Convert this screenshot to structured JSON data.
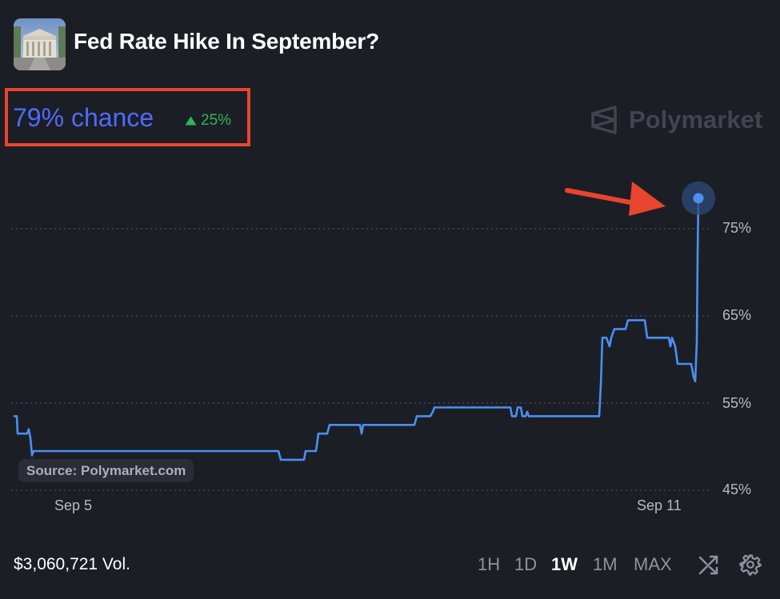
{
  "market": {
    "title": "Fed Rate Hike In September?",
    "icon": "federal-reserve-building-image"
  },
  "headline": {
    "chance": "79% chance",
    "change": "25%",
    "change_direction": "up",
    "chance_color": "#4f6bff",
    "change_color": "#2fb55a"
  },
  "annotations": {
    "highlight_box_color": "#e8452e",
    "arrow_color": "#e8452e"
  },
  "brand": {
    "name": "Polymarket",
    "icon": "polymarket-logo-icon"
  },
  "source": "Source: Polymarket.com",
  "chart_data": {
    "type": "line",
    "line_color": "#4a90f0",
    "ylim": [
      42,
      81
    ],
    "yticks": [
      45,
      55,
      65,
      75
    ],
    "ytick_labels": [
      "45%",
      "55%",
      "65%",
      "75%"
    ],
    "xtick_labels": [
      "Sep 5",
      "Sep 11"
    ],
    "grid": "horizontal-dotted",
    "x_start": 0,
    "x_end": 855,
    "xtick_positions": [
      68,
      795
    ],
    "series": [
      {
        "points": [
          [
            0,
            53.5
          ],
          [
            3,
            53.5
          ],
          [
            4,
            51.5
          ],
          [
            16,
            51.5
          ],
          [
            18,
            52
          ],
          [
            20,
            51
          ],
          [
            22,
            49
          ],
          [
            24,
            49.5
          ],
          [
            330,
            49.5
          ],
          [
            333,
            48.5
          ],
          [
            362,
            48.5
          ],
          [
            364,
            49.5
          ],
          [
            377,
            49.5
          ],
          [
            380,
            51.5
          ],
          [
            391,
            51.5
          ],
          [
            394,
            52.5
          ],
          [
            432,
            52.5
          ],
          [
            434,
            51.5
          ],
          [
            436,
            52.5
          ],
          [
            500,
            52.5
          ],
          [
            503,
            53.5
          ],
          [
            520,
            53.5
          ],
          [
            523,
            54
          ],
          [
            525,
            54.5
          ],
          [
            620,
            54.5
          ],
          [
            622,
            53.5
          ],
          [
            627,
            53.5
          ],
          [
            629,
            54.5
          ],
          [
            633,
            54.5
          ],
          [
            635,
            53.5
          ],
          [
            639,
            53.5
          ],
          [
            641,
            54
          ],
          [
            643,
            53.5
          ],
          [
            731,
            53.5
          ],
          [
            733,
            57
          ],
          [
            735,
            62.5
          ],
          [
            740,
            62.5
          ],
          [
            744,
            61.5
          ],
          [
            746,
            62.5
          ],
          [
            750,
            63.5
          ],
          [
            764,
            63.5
          ],
          [
            767,
            64.5
          ],
          [
            788,
            64.5
          ],
          [
            791,
            62.5
          ],
          [
            818,
            62.5
          ],
          [
            820,
            61.5
          ],
          [
            822,
            62.5
          ],
          [
            826,
            61.5
          ],
          [
            829,
            59.5
          ],
          [
            846,
            59.5
          ],
          [
            849,
            58
          ],
          [
            851,
            57.5
          ],
          [
            853,
            62
          ],
          [
            854,
            72
          ],
          [
            855,
            78.5
          ]
        ]
      }
    ],
    "last_value": 78.5
  },
  "footer": {
    "volume": "$3,060,721 Vol.",
    "ranges": [
      "1H",
      "1D",
      "1W",
      "1M",
      "MAX"
    ],
    "active_range": "1W",
    "icons": [
      "shuffle-icon",
      "gear-icon"
    ]
  }
}
